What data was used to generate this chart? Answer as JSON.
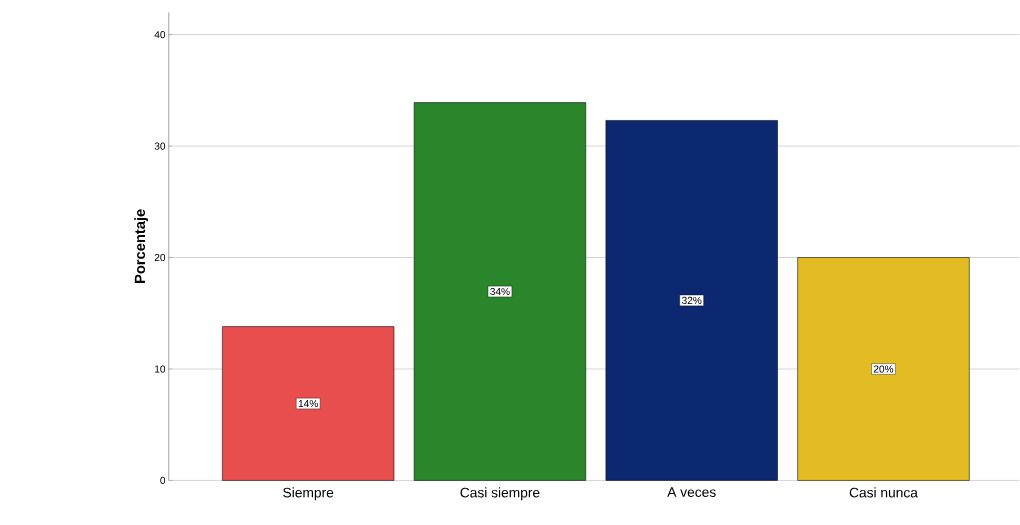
{
  "chart_data": {
    "type": "bar",
    "ylabel": "Porcentaje",
    "categories": [
      "Siempre",
      "Casi siempre",
      "A veces",
      "Casi nunca"
    ],
    "values": [
      13.8,
      33.9,
      32.3,
      20.0
    ],
    "value_labels": [
      "14%",
      "34%",
      "32%",
      "20%"
    ],
    "colors": [
      "#e94e4e",
      "#2a862a",
      "#0b2870",
      "#e2bc22"
    ],
    "ylim": [
      0,
      42
    ],
    "yticks": [
      0,
      10,
      20,
      30,
      40
    ],
    "grid": "y"
  }
}
